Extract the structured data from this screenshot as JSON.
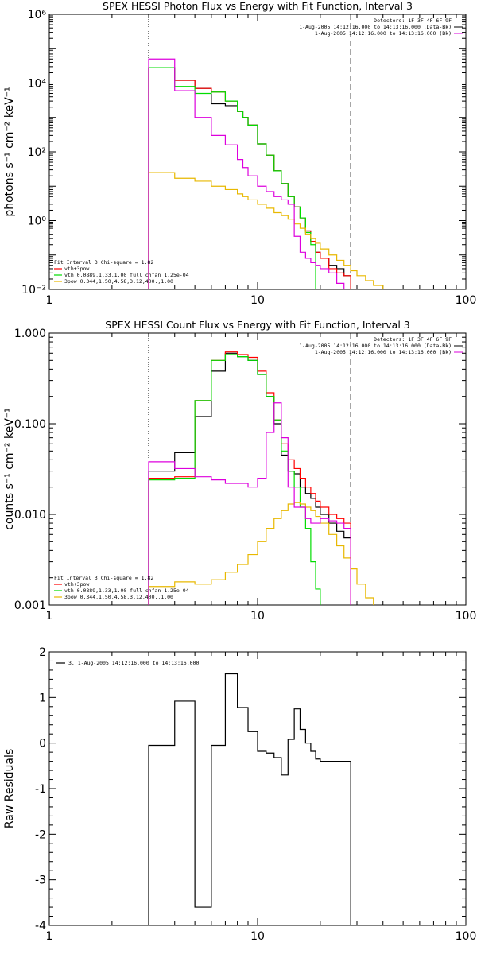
{
  "chart_data": [
    {
      "id": "photon",
      "type": "line",
      "title": "SPEX HESSI Photon Flux vs Energy with Fit Function, Interval 3",
      "ylabel": "photons s⁻¹ cm⁻² keV⁻¹",
      "xscale": "log",
      "yscale": "log",
      "xlim": [
        1,
        100
      ],
      "ylim": [
        0.01,
        1000000
      ],
      "xticks": [
        {
          "v": 1,
          "label": "1"
        },
        {
          "v": 10,
          "label": "10"
        },
        {
          "v": 100,
          "label": "100"
        }
      ],
      "yticks": [
        {
          "v": 0.01,
          "label": "10⁻²"
        },
        {
          "v": 1,
          "label": "10⁰"
        },
        {
          "v": 100,
          "label": "10²"
        },
        {
          "v": 10000,
          "label": "10⁴"
        },
        {
          "v": 1000000,
          "label": "10⁶"
        }
      ],
      "vlines": [
        {
          "x": 3,
          "style": "dotted"
        },
        {
          "x": 28,
          "style": "dashed"
        }
      ],
      "top_right_text": [
        "Detectors: 1F 3F 4F 6F 9F",
        "1-Aug-2005 14:12:16.000 to 14:13:16.000 (Data-Bk)",
        "1-Aug-2005 14:12:16.000 to 14:13:16.000 (Bk)"
      ],
      "legend": {
        "position": "bottom-left",
        "header": "Fit Interval 3   Chi-square = 1.82",
        "items": [
          {
            "label": "vth+3pow",
            "color": "#ff0000"
          },
          {
            "label": "vth 0.0889,1.33,1.00  full chfan 1.25e-04",
            "color": "#00dd00"
          },
          {
            "label": "3pow 0.344,1.50,4.58,3.12,400.,1.00",
            "color": "#e8b800"
          }
        ]
      },
      "bin_edges": [
        3,
        3.5,
        4,
        4.5,
        5,
        5.5,
        6,
        6.5,
        7,
        7.5,
        8,
        8.5,
        9,
        10,
        11,
        12,
        13,
        14,
        15,
        16,
        17,
        18,
        19,
        20,
        22,
        24,
        26,
        28,
        30,
        33,
        36,
        40,
        45,
        50
      ],
      "series": [
        {
          "color": "#000000",
          "values": [
            28000,
            28000,
            12000,
            12000,
            7000,
            7000,
            2500,
            2500,
            2200,
            2200,
            1500,
            1000,
            600,
            170,
            80,
            28,
            12,
            5,
            2.5,
            1.2,
            0.5,
            0.25,
            0.12,
            0.08,
            0.05,
            0.04,
            0.025
          ]
        },
        {
          "color": "#ff0000",
          "values": [
            28000,
            28000,
            12000,
            12000,
            7000,
            7000,
            5500,
            5500,
            3000,
            3000,
            1500,
            1000,
            600,
            170,
            80,
            28,
            12,
            5,
            2.5,
            1.2,
            0.5,
            0.25,
            0.12,
            0.08,
            0.04,
            0.03,
            0.025
          ]
        },
        {
          "color": "#00dd00",
          "values": [
            28000,
            28000,
            8000,
            8000,
            5000,
            5000,
            5500,
            5500,
            3000,
            3000,
            1500,
            1000,
            600,
            170,
            80,
            28,
            12,
            5,
            2.5,
            1.2,
            0.45,
            0.2,
            0.01
          ]
        },
        {
          "color": "#e8b800",
          "values": [
            25,
            25,
            17,
            17,
            14,
            14,
            10,
            10,
            8,
            8,
            6,
            5,
            4,
            3,
            2.3,
            1.7,
            1.4,
            1.1,
            0.8,
            0.6,
            0.4,
            0.3,
            0.22,
            0.15,
            0.1,
            0.07,
            0.05,
            0.035,
            0.025,
            0.018,
            0.013,
            0.01
          ]
        },
        {
          "color": "#dd00dd",
          "values": [
            50000,
            50000,
            6000,
            6000,
            1000,
            1000,
            300,
            300,
            160,
            160,
            60,
            35,
            20,
            10,
            7,
            5,
            4,
            3,
            0.35,
            0.12,
            0.08,
            0.06,
            0.05,
            0.04,
            0.03,
            0.015,
            0.01
          ]
        }
      ]
    },
    {
      "id": "count",
      "type": "line",
      "title": "SPEX HESSI Count Flux vs Energy with Fit Function, Interval 3",
      "ylabel": "counts s⁻¹ cm⁻² keV⁻¹",
      "xscale": "log",
      "yscale": "log",
      "xlim": [
        1,
        100
      ],
      "ylim": [
        0.001,
        1
      ],
      "xticks": [
        {
          "v": 1,
          "label": "1"
        },
        {
          "v": 10,
          "label": "10"
        },
        {
          "v": 100,
          "label": "100"
        }
      ],
      "yticks": [
        {
          "v": 0.001,
          "label": "0.001"
        },
        {
          "v": 0.01,
          "label": "0.010"
        },
        {
          "v": 0.1,
          "label": "0.100"
        },
        {
          "v": 1,
          "label": "1.000"
        }
      ],
      "vlines": [
        {
          "x": 3,
          "style": "dotted"
        },
        {
          "x": 28,
          "style": "dashed"
        }
      ],
      "top_right_text": [
        "Detectors: 1F 3F 4F 6F 9F",
        "1-Aug-2005 14:12:16.000 to 14:13:16.000 (Data-Bk)",
        "1-Aug-2005 14:12:16.000 to 14:13:16.000 (Bk)"
      ],
      "legend": {
        "position": "bottom-left",
        "header": "Fit Interval 3   Chi-square = 1.82",
        "items": [
          {
            "label": "vth+3pow",
            "color": "#ff0000"
          },
          {
            "label": "vth 0.0889,1.33,1.00  full chfan 1.25e-04",
            "color": "#00dd00"
          },
          {
            "label": "3pow 0.344,1.50,4.58,3.12,400.,1.00",
            "color": "#e8b800"
          }
        ]
      },
      "bin_edges": [
        3,
        4,
        5,
        6,
        7,
        8,
        9,
        10,
        11,
        12,
        13,
        14,
        15,
        16,
        17,
        18,
        19,
        20,
        22,
        24,
        26,
        28,
        30,
        33,
        36,
        40,
        45,
        50
      ],
      "series": [
        {
          "color": "#000000",
          "values": [
            0.03,
            0.048,
            0.12,
            0.38,
            0.6,
            0.55,
            0.5,
            0.35,
            0.2,
            0.1,
            0.045,
            0.03,
            0.028,
            0.02,
            0.017,
            0.015,
            0.012,
            0.01,
            0.008,
            0.0065,
            0.0055
          ]
        },
        {
          "color": "#ff0000",
          "values": [
            0.025,
            0.026,
            0.18,
            0.5,
            0.62,
            0.58,
            0.54,
            0.38,
            0.22,
            0.11,
            0.06,
            0.04,
            0.032,
            0.025,
            0.02,
            0.017,
            0.014,
            0.012,
            0.01,
            0.009,
            0.008
          ]
        },
        {
          "color": "#00dd00",
          "values": [
            0.024,
            0.025,
            0.18,
            0.5,
            0.58,
            0.55,
            0.5,
            0.35,
            0.2,
            0.11,
            0.05,
            0.03,
            0.02,
            0.012,
            0.007,
            0.003,
            0.0015
          ]
        },
        {
          "color": "#e8b800",
          "values": [
            0.0016,
            0.0018,
            0.0017,
            0.0019,
            0.0023,
            0.0028,
            0.0036,
            0.005,
            0.007,
            0.009,
            0.011,
            0.013,
            0.0135,
            0.013,
            0.012,
            0.011,
            0.0095,
            0.008,
            0.006,
            0.0045,
            0.0033,
            0.0025,
            0.0017,
            0.0012
          ]
        },
        {
          "color": "#dd00dd",
          "values": [
            0.038,
            0.032,
            0.026,
            0.024,
            0.022,
            0.022,
            0.02,
            0.025,
            0.08,
            0.17,
            0.07,
            0.02,
            0.012,
            0.012,
            0.009,
            0.008,
            0.008,
            0.009,
            0.0085,
            0.008,
            0.007
          ]
        }
      ]
    },
    {
      "id": "residuals",
      "type": "line",
      "title": "",
      "ylabel": "Raw Residuals",
      "xscale": "log",
      "yscale": "linear",
      "xlim": [
        1,
        100
      ],
      "ylim": [
        -4,
        2
      ],
      "xticks": [
        {
          "v": 1,
          "label": "1"
        },
        {
          "v": 10,
          "label": "10"
        },
        {
          "v": 100,
          "label": "100"
        }
      ],
      "yticks": [
        {
          "v": -4,
          "label": "-4"
        },
        {
          "v": -3,
          "label": "-3"
        },
        {
          "v": -2,
          "label": "-2"
        },
        {
          "v": -1,
          "label": "-1"
        },
        {
          "v": 0,
          "label": "0"
        },
        {
          "v": 1,
          "label": "1"
        },
        {
          "v": 2,
          "label": "2"
        }
      ],
      "vlines": [],
      "top_right_text": [],
      "legend": {
        "position": "top-left",
        "header": "",
        "items": [
          {
            "label": "3. 1-Aug-2005 14:12:16.000 to 14:13:16.000",
            "color": "#000000"
          }
        ]
      },
      "bin_edges": [
        3,
        4,
        5,
        6,
        7,
        8,
        9,
        10,
        11,
        12,
        13,
        14,
        15,
        16,
        17,
        18,
        19,
        20,
        22,
        24,
        26,
        28
      ],
      "series": [
        {
          "color": "#000000",
          "values": [
            -0.05,
            0.92,
            -3.6,
            -0.05,
            1.52,
            0.78,
            0.25,
            -0.18,
            -0.22,
            -0.32,
            -0.7,
            0.08,
            0.75,
            0.3,
            0.0,
            -0.18,
            -0.35,
            -0.4,
            -0.4,
            -0.4,
            -0.4
          ]
        }
      ]
    }
  ]
}
